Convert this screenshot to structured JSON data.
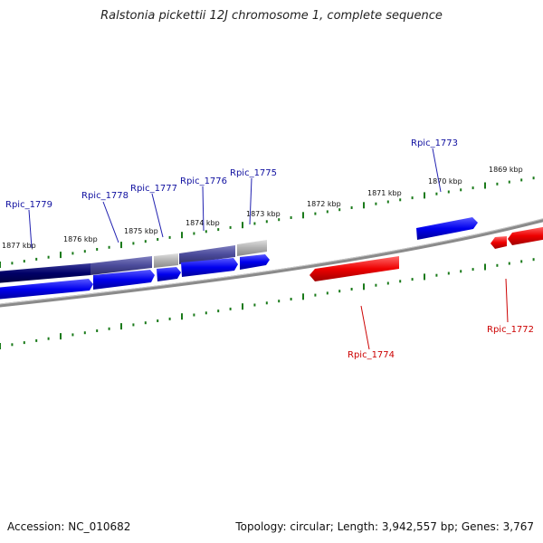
{
  "title": "Ralstonia pickettii 12J chromosome 1, complete sequence",
  "footer": {
    "accession": "Accession: NC_010682",
    "topology": "Topology: circular",
    "length": "Length: 3,942,557 bp",
    "genes": "Genes: 3,767"
  },
  "colors": {
    "forward_gene": "#0000ee",
    "reverse_gene": "#ee0000",
    "forward_label": "#1010a0",
    "reverse_label": "#cc0000",
    "tick": "#1a7a1a",
    "backbone": "#808080",
    "cds_dark": "#000066",
    "cds_mid": "#4a4a9a",
    "cds_gray": "#b0b0b0"
  },
  "kbp_ticks": [
    "1877 kbp",
    "1876 kbp",
    "1875 kbp",
    "1874 kbp",
    "1873 kbp",
    "1872 kbp",
    "1871 kbp",
    "1870 kbp",
    "1869 kbp"
  ],
  "gene_labels": {
    "rpic_1779": "Rpic_1779",
    "rpic_1778": "Rpic_1778",
    "rpic_1777": "Rpic_1777",
    "rpic_1776": "Rpic_1776",
    "rpic_1775": "Rpic_1775",
    "rpic_1773": "Rpic_1773",
    "rpic_1774": "Rpic_1774",
    "rpic_1772": "Rpic_1772"
  }
}
